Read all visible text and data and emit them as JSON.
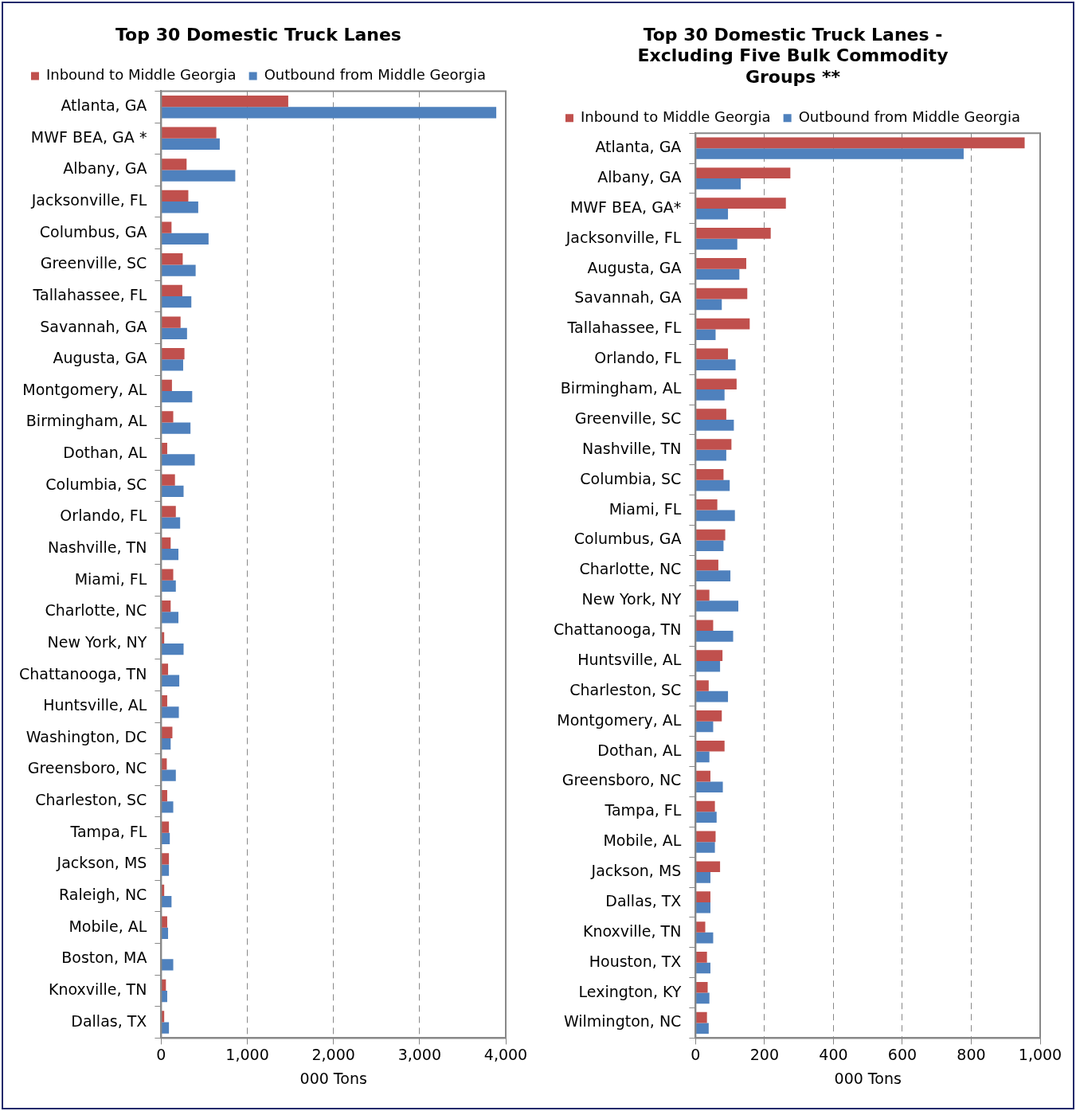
{
  "chart_data": [
    {
      "type": "bar",
      "orientation": "horizontal",
      "title": "Top 30 Domestic Truck Lanes",
      "xlabel": "000 Tons",
      "categories": [
        "Atlanta, GA",
        "MWF BEA, GA *",
        "Albany, GA",
        "Jacksonville, FL",
        "Columbus, GA",
        "Greenville, SC",
        "Tallahassee, FL",
        "Savannah, GA",
        "Augusta, GA",
        "Montgomery, AL",
        "Birmingham, AL",
        "Dothan, AL",
        "Columbia, SC",
        "Orlando, FL",
        "Nashville, TN",
        "Miami, FL",
        "Charlotte, NC",
        "New York, NY",
        "Chattanooga, TN",
        "Huntsville, AL",
        "Washington, DC",
        "Greensboro, NC",
        "Charleston, SC",
        "Tampa, FL",
        "Jackson, MS",
        "Raleigh, NC",
        "Mobile, AL",
        "Boston, MA",
        "Knoxville, TN",
        "Dallas, TX"
      ],
      "series": [
        {
          "name": "Inbound to Middle Georgia",
          "color": "#c0504d",
          "values": [
            1475,
            640,
            295,
            315,
            120,
            250,
            245,
            225,
            270,
            125,
            140,
            70,
            160,
            170,
            110,
            140,
            110,
            35,
            80,
            70,
            130,
            65,
            70,
            90,
            90,
            35,
            70,
            0,
            55,
            35
          ]
        },
        {
          "name": "Outbound from Middle Georgia",
          "color": "#4f81bd",
          "values": [
            3890,
            680,
            860,
            430,
            550,
            400,
            350,
            300,
            255,
            360,
            340,
            390,
            260,
            220,
            200,
            170,
            200,
            260,
            210,
            205,
            110,
            170,
            140,
            100,
            90,
            120,
            80,
            140,
            70,
            90
          ]
        }
      ],
      "xlim": [
        0,
        4000
      ],
      "xticks": [
        {
          "value": 0,
          "label": "0"
        },
        {
          "value": 1000,
          "label": "1,000"
        },
        {
          "value": 2000,
          "label": "2,000"
        },
        {
          "value": 3000,
          "label": "3,000"
        },
        {
          "value": 4000,
          "label": "4,000"
        }
      ],
      "grid": "x",
      "legend": "top"
    },
    {
      "type": "bar",
      "orientation": "horizontal",
      "title": "Top 30 Domestic Truck Lanes - Excluding Five Bulk Commodity Groups **",
      "xlabel": "000 Tons",
      "categories": [
        "Atlanta, GA",
        "Albany, GA",
        "MWF BEA, GA*",
        "Jacksonville, FL",
        "Augusta, GA",
        "Savannah, GA",
        "Tallahassee, FL",
        "Orlando, FL",
        "Birmingham, AL",
        "Greenville, SC",
        "Nashville, TN",
        "Columbia, SC",
        "Miami, FL",
        "Columbus, GA",
        "Charlotte, NC",
        "New York, NY",
        "Chattanooga, TN",
        "Huntsville, AL",
        "Charleston, SC",
        "Montgomery, AL",
        "Dothan, AL",
        "Greensboro, NC",
        "Tampa, FL",
        "Mobile, AL",
        "Jackson, MS",
        "Dallas, TX",
        "Knoxville, TN",
        "Houston, TX",
        "Lexington, KY",
        "Wilmington, NC"
      ],
      "series": [
        {
          "name": "Inbound to Middle Georgia",
          "color": "#c0504d",
          "values": [
            955,
            275,
            262,
            218,
            147,
            150,
            157,
            94,
            119,
            89,
            104,
            81,
            63,
            86,
            66,
            40,
            51,
            78,
            38,
            76,
            84,
            43,
            56,
            58,
            71,
            43,
            28,
            33,
            35,
            33
          ]
        },
        {
          "name": "Outbound from Middle Georgia",
          "color": "#4f81bd",
          "values": [
            778,
            131,
            94,
            121,
            127,
            76,
            58,
            116,
            84,
            111,
            89,
            99,
            114,
            81,
            101,
            124,
            109,
            71,
            94,
            51,
            40,
            79,
            61,
            56,
            43,
            43,
            51,
            43,
            40,
            38
          ]
        }
      ],
      "xlim": [
        0,
        1000
      ],
      "xticks": [
        0,
        200,
        400,
        600,
        800,
        {
          "value": 1000,
          "label": "1,000"
        }
      ],
      "grid": "x",
      "legend": "top"
    }
  ]
}
